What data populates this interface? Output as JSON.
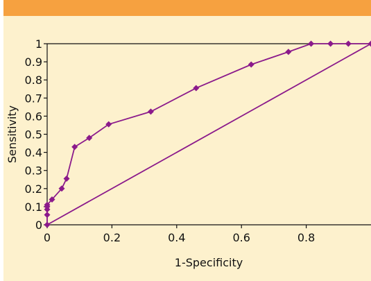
{
  "header": {
    "accent_color": "#f6a140"
  },
  "panel": {
    "background_color": "#fdf1cd"
  },
  "chart_data": {
    "type": "line",
    "title": "",
    "xlabel": "1-Specificity",
    "ylabel": "Sensitivity",
    "xlim": [
      0,
      1
    ],
    "ylim": [
      0,
      1
    ],
    "x_ticks": [
      0,
      0.2,
      0.4,
      0.6,
      0.8
    ],
    "x_tick_labels": [
      "0",
      "0.2",
      "0.4",
      "0.6",
      "0.8"
    ],
    "y_ticks": [
      0,
      0.1,
      0.2,
      0.3,
      0.4,
      0.5,
      0.6,
      0.7,
      0.8,
      0.9,
      1
    ],
    "y_tick_labels": [
      "0",
      "0.1",
      "0.2",
      "0.3",
      "0.4",
      "0.5",
      "0.6",
      "0.7",
      "0.8",
      "0.9",
      "1"
    ],
    "grid": false,
    "series_color": "#8b1a8b",
    "series": [
      {
        "marker": "diamond",
        "x": [
          0,
          0,
          0,
          0,
          0,
          0.015,
          0.045,
          0.06,
          0.085,
          0.13,
          0.19,
          0.32,
          0.46,
          0.63,
          0.745,
          0.815,
          0.875,
          0.93,
          1
        ],
        "y": [
          0,
          0.055,
          0.085,
          0.1,
          0.11,
          0.14,
          0.2,
          0.255,
          0.43,
          0.48,
          0.555,
          0.625,
          0.755,
          0.885,
          0.955,
          1,
          1,
          1,
          1
        ]
      },
      {
        "marker": "none",
        "x": [
          0,
          1
        ],
        "y": [
          0,
          1
        ]
      }
    ]
  }
}
